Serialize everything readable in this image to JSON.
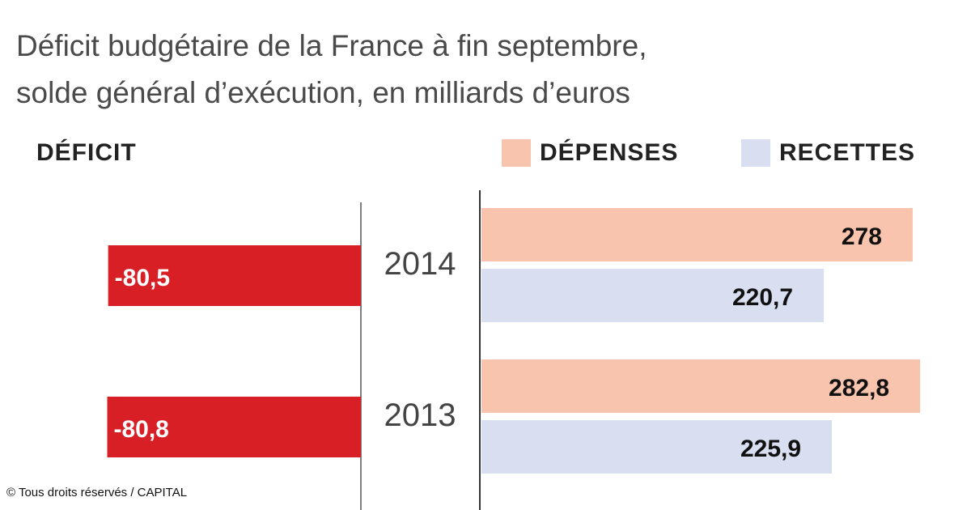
{
  "chart_data": {
    "type": "bar",
    "title": "Déficit budgétaire de la France à fin septembre,",
    "subtitle": "solde général d’exécution, en milliards d’euros",
    "categories": [
      "2014",
      "2013"
    ],
    "deficit": {
      "name": "DÉFICIT",
      "values": [
        -80.5,
        -80.8
      ],
      "labels": [
        "-80,5",
        "-80,8"
      ],
      "color": "#d91f26"
    },
    "series": [
      {
        "name": "DÉPENSES",
        "values": [
          278,
          282.8
        ],
        "labels": [
          "278",
          "282,8"
        ],
        "color": "#f9c4ad"
      },
      {
        "name": "RECETTES",
        "values": [
          220.7,
          225.9
        ],
        "labels": [
          "220,7",
          "225,9"
        ],
        "color": "#d9dff0"
      }
    ],
    "legend": "top-right"
  },
  "credit": "© Tous droits réservés / CAPITAL"
}
